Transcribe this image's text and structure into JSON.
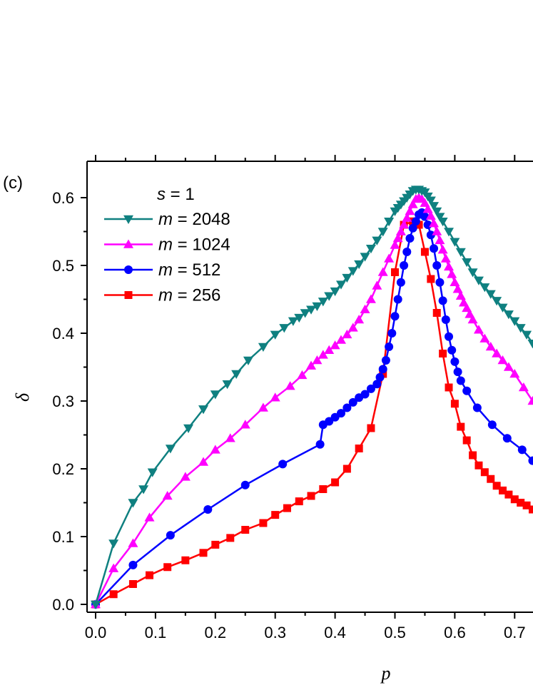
{
  "panel_label": "(c)",
  "chart_data": {
    "type": "line",
    "xlabel": "p",
    "ylabel": "δ",
    "xlim": [
      -0.02,
      0.73
    ],
    "ylim": [
      -0.01,
      0.65
    ],
    "x_ticks": [
      0.0,
      0.1,
      0.2,
      0.3,
      0.4,
      0.5,
      0.6,
      0.7
    ],
    "x_tick_labels": [
      "0.0",
      "0.1",
      "0.2",
      "0.3",
      "0.4",
      "0.5",
      "0.6",
      "0.7"
    ],
    "y_ticks": [
      0.0,
      0.1,
      0.2,
      0.3,
      0.4,
      0.5,
      0.6
    ],
    "y_tick_labels": [
      "0.0",
      "0.1",
      "0.2",
      "0.3",
      "0.4",
      "0.5",
      "0.6"
    ],
    "grid": false,
    "legend_position": "top-left",
    "legend_header": {
      "var": "s",
      "rest": " = 1"
    },
    "series": [
      {
        "name": "m = 2048",
        "legend_var": "m",
        "legend_rest": " = 2048",
        "color": "#0f8080",
        "marker": "triangle-down",
        "x": [
          0.0,
          0.03,
          0.0625,
          0.08,
          0.095,
          0.125,
          0.155,
          0.18,
          0.2,
          0.22,
          0.235,
          0.255,
          0.28,
          0.3,
          0.315,
          0.33,
          0.34,
          0.35,
          0.36,
          0.37,
          0.38,
          0.39,
          0.4,
          0.41,
          0.42,
          0.43,
          0.44,
          0.45,
          0.46,
          0.47,
          0.48,
          0.49,
          0.5,
          0.505,
          0.51,
          0.515,
          0.52,
          0.525,
          0.53,
          0.535,
          0.54,
          0.545,
          0.55,
          0.555,
          0.56,
          0.565,
          0.57,
          0.575,
          0.58,
          0.59,
          0.6,
          0.61,
          0.62,
          0.63,
          0.64,
          0.65,
          0.66,
          0.67,
          0.68,
          0.69,
          0.7,
          0.71,
          0.72,
          0.73
        ],
        "y": [
          0.0,
          0.09,
          0.15,
          0.17,
          0.195,
          0.23,
          0.26,
          0.288,
          0.31,
          0.325,
          0.34,
          0.36,
          0.38,
          0.398,
          0.408,
          0.418,
          0.423,
          0.43,
          0.435,
          0.44,
          0.447,
          0.455,
          0.462,
          0.472,
          0.482,
          0.492,
          0.502,
          0.513,
          0.525,
          0.537,
          0.55,
          0.565,
          0.58,
          0.585,
          0.59,
          0.595,
          0.6,
          0.605,
          0.61,
          0.612,
          0.612,
          0.61,
          0.608,
          0.602,
          0.596,
          0.588,
          0.58,
          0.572,
          0.565,
          0.55,
          0.535,
          0.52,
          0.505,
          0.49,
          0.478,
          0.468,
          0.458,
          0.448,
          0.438,
          0.428,
          0.418,
          0.408,
          0.398,
          0.385
        ]
      },
      {
        "name": "m = 1024",
        "legend_var": "m",
        "legend_rest": " = 1024",
        "color": "#ff00ff",
        "marker": "triangle-up",
        "x": [
          0.0,
          0.03,
          0.0625,
          0.09,
          0.12,
          0.15,
          0.18,
          0.2,
          0.225,
          0.25,
          0.28,
          0.3,
          0.325,
          0.345,
          0.36,
          0.37,
          0.38,
          0.39,
          0.4,
          0.41,
          0.42,
          0.43,
          0.44,
          0.45,
          0.46,
          0.47,
          0.48,
          0.49,
          0.5,
          0.505,
          0.51,
          0.515,
          0.52,
          0.525,
          0.53,
          0.535,
          0.54,
          0.545,
          0.55,
          0.555,
          0.56,
          0.565,
          0.57,
          0.575,
          0.58,
          0.585,
          0.59,
          0.595,
          0.6,
          0.605,
          0.61,
          0.615,
          0.62,
          0.625,
          0.63,
          0.64,
          0.65,
          0.66,
          0.67,
          0.68,
          0.69,
          0.7,
          0.715,
          0.73
        ],
        "y": [
          0.0,
          0.053,
          0.09,
          0.128,
          0.16,
          0.188,
          0.21,
          0.228,
          0.245,
          0.265,
          0.29,
          0.305,
          0.322,
          0.338,
          0.352,
          0.36,
          0.368,
          0.375,
          0.382,
          0.39,
          0.398,
          0.408,
          0.42,
          0.435,
          0.45,
          0.47,
          0.49,
          0.51,
          0.53,
          0.54,
          0.55,
          0.56,
          0.57,
          0.58,
          0.59,
          0.598,
          0.6,
          0.598,
          0.592,
          0.583,
          0.573,
          0.562,
          0.55,
          0.537,
          0.523,
          0.51,
          0.498,
          0.487,
          0.475,
          0.465,
          0.455,
          0.445,
          0.437,
          0.428,
          0.42,
          0.405,
          0.392,
          0.38,
          0.37,
          0.36,
          0.35,
          0.34,
          0.32,
          0.3
        ]
      },
      {
        "name": "m = 512",
        "legend_var": "m",
        "legend_rest": " = 512",
        "color": "#0000ff",
        "marker": "circle",
        "x": [
          0.0,
          0.0625,
          0.125,
          0.1875,
          0.25,
          0.3125,
          0.375,
          0.38,
          0.39,
          0.4,
          0.41,
          0.42,
          0.43,
          0.44,
          0.45,
          0.46,
          0.47,
          0.475,
          0.48,
          0.485,
          0.49,
          0.495,
          0.5,
          0.505,
          0.51,
          0.515,
          0.52,
          0.525,
          0.53,
          0.535,
          0.54,
          0.545,
          0.55,
          0.555,
          0.56,
          0.565,
          0.57,
          0.575,
          0.58,
          0.585,
          0.59,
          0.595,
          0.6,
          0.605,
          0.61,
          0.62,
          0.6375,
          0.6625,
          0.6875,
          0.7125,
          0.73
        ],
        "y": [
          0.0,
          0.058,
          0.102,
          0.14,
          0.176,
          0.207,
          0.236,
          0.265,
          0.27,
          0.276,
          0.282,
          0.29,
          0.298,
          0.305,
          0.31,
          0.318,
          0.325,
          0.335,
          0.347,
          0.36,
          0.38,
          0.4,
          0.425,
          0.45,
          0.475,
          0.5,
          0.52,
          0.54,
          0.555,
          0.565,
          0.575,
          0.578,
          0.572,
          0.56,
          0.545,
          0.525,
          0.5,
          0.475,
          0.448,
          0.42,
          0.395,
          0.375,
          0.358,
          0.343,
          0.33,
          0.315,
          0.29,
          0.265,
          0.245,
          0.228,
          0.212
        ]
      },
      {
        "name": "m = 256",
        "legend_var": "m",
        "legend_rest": " = 256",
        "color": "#ff0000",
        "marker": "square",
        "x": [
          0.0,
          0.03,
          0.0625,
          0.09,
          0.12,
          0.15,
          0.18,
          0.2,
          0.225,
          0.25,
          0.28,
          0.3,
          0.32,
          0.34,
          0.36,
          0.38,
          0.4,
          0.42,
          0.44,
          0.46,
          0.48,
          0.5,
          0.515,
          0.53,
          0.54,
          0.55,
          0.56,
          0.57,
          0.58,
          0.59,
          0.6,
          0.61,
          0.62,
          0.63,
          0.64,
          0.65,
          0.66,
          0.67,
          0.68,
          0.69,
          0.7,
          0.71,
          0.72,
          0.73
        ],
        "y": [
          0.0,
          0.015,
          0.03,
          0.043,
          0.055,
          0.065,
          0.076,
          0.088,
          0.098,
          0.11,
          0.12,
          0.132,
          0.142,
          0.152,
          0.16,
          0.17,
          0.18,
          0.2,
          0.23,
          0.26,
          0.34,
          0.49,
          0.56,
          0.565,
          0.56,
          0.52,
          0.48,
          0.43,
          0.37,
          0.32,
          0.296,
          0.262,
          0.242,
          0.22,
          0.205,
          0.195,
          0.185,
          0.175,
          0.168,
          0.162,
          0.155,
          0.15,
          0.146,
          0.14
        ]
      }
    ]
  }
}
